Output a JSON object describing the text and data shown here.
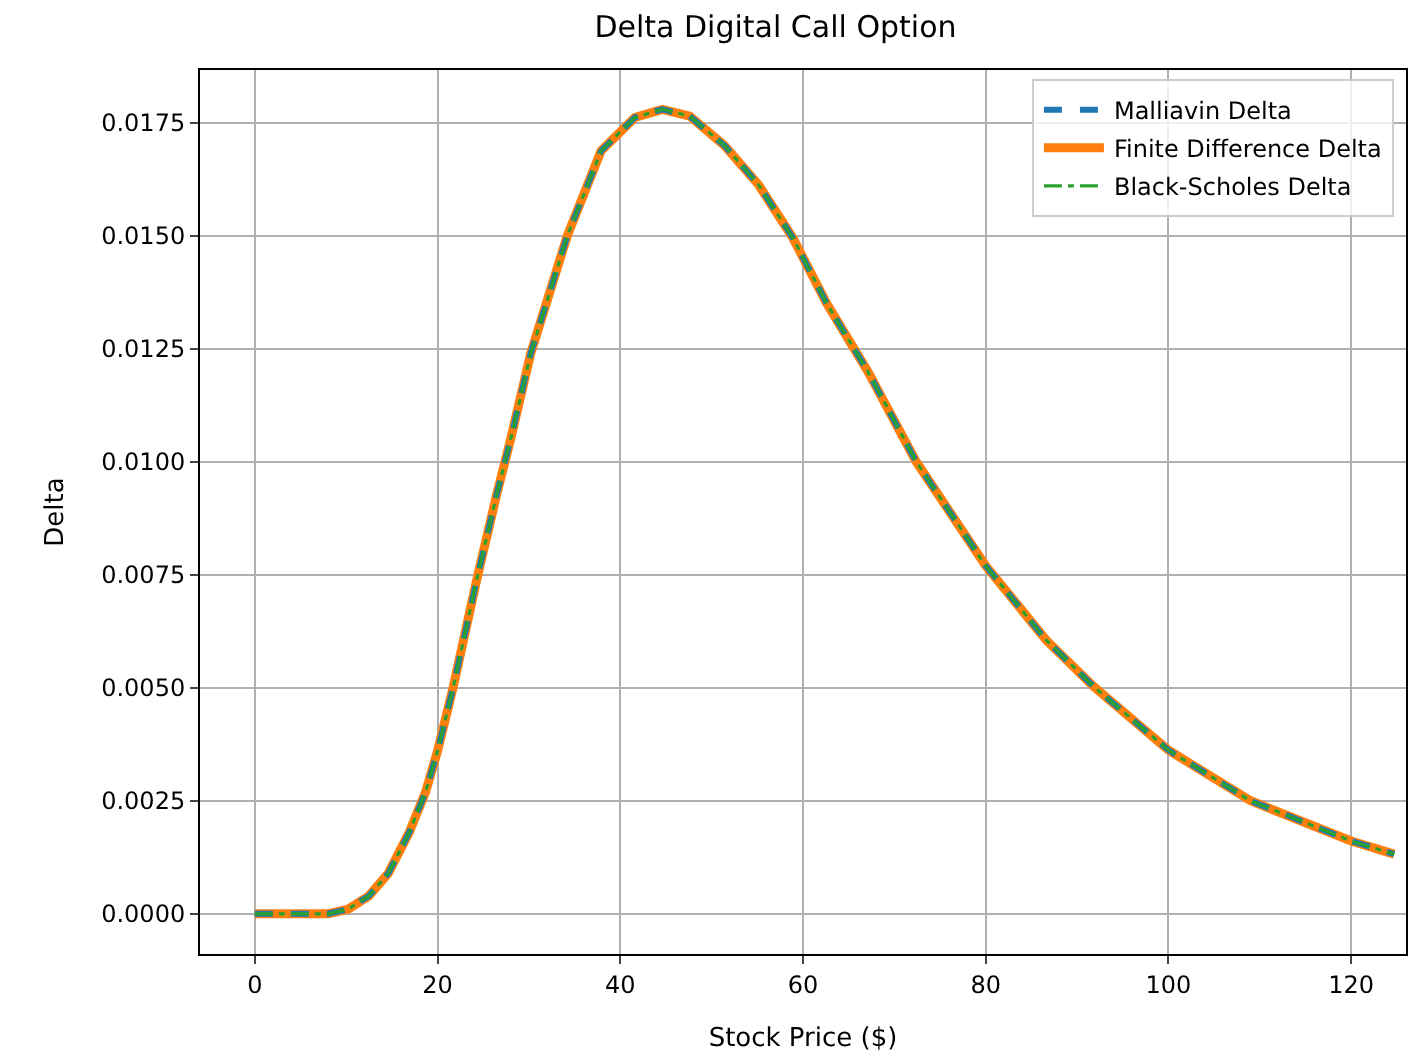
{
  "chart_data": {
    "type": "line",
    "title": "Delta Digital Call Option",
    "xlabel": "Stock Price ($)",
    "ylabel": "Delta",
    "x": [
      0,
      5,
      8,
      10.2,
      12.5,
      14.6,
      16.9,
      18.7,
      20,
      21.7,
      24.3,
      26.5,
      28,
      30.2,
      34.2,
      37.9,
      41.6,
      44.6,
      47.6,
      51.4,
      55.1,
      58.9,
      62.6,
      67.1,
      72.4,
      80,
      86.6,
      91.8,
      100,
      109,
      120,
      124.7
    ],
    "series": [
      {
        "name": "Malliavin Delta",
        "color": "#1f77b4",
        "line_style": "dashed",
        "values": [
          0,
          0,
          0,
          0.0001,
          0.0004,
          0.00089,
          0.0018,
          0.0027,
          0.0036,
          0.005,
          0.0074,
          0.0093,
          0.0105,
          0.0124,
          0.015,
          0.01688,
          0.01762,
          0.0178,
          0.01765,
          0.017,
          0.01614,
          0.01495,
          0.0135,
          0.012,
          0.01,
          0.0077,
          0.00606,
          0.00503,
          0.00362,
          0.0025,
          0.00161,
          0.00132
        ]
      },
      {
        "name": "Finite Difference Delta",
        "color": "#ff7f0e",
        "line_style": "solid",
        "values": [
          0,
          0,
          0,
          0.0001,
          0.0004,
          0.00089,
          0.0018,
          0.0027,
          0.0036,
          0.005,
          0.0074,
          0.0093,
          0.0105,
          0.0124,
          0.015,
          0.01688,
          0.01762,
          0.0178,
          0.01765,
          0.017,
          0.01614,
          0.01495,
          0.0135,
          0.012,
          0.01,
          0.0077,
          0.00606,
          0.00503,
          0.00362,
          0.0025,
          0.00161,
          0.00132
        ]
      },
      {
        "name": "Black-Scholes Delta",
        "color": "#2ca02c",
        "line_style": "dashdot",
        "values": [
          0,
          0,
          0,
          0.0001,
          0.0004,
          0.00089,
          0.0018,
          0.0027,
          0.0036,
          0.005,
          0.0074,
          0.0093,
          0.0105,
          0.0124,
          0.015,
          0.01688,
          0.01762,
          0.0178,
          0.01765,
          0.017,
          0.01614,
          0.01495,
          0.0135,
          0.012,
          0.01,
          0.0077,
          0.00606,
          0.00503,
          0.00362,
          0.0025,
          0.00161,
          0.00132
        ]
      }
    ],
    "xlim": [
      -6,
      126
    ],
    "xticks": [
      0,
      20,
      40,
      60,
      80,
      100,
      120
    ],
    "ylim": [
      -0.00089,
      0.01867
    ],
    "yticks": [
      {
        "value": 0,
        "label": "0.0000"
      },
      {
        "value": 0.0025,
        "label": "0.0025"
      },
      {
        "value": 0.005,
        "label": "0.0050"
      },
      {
        "value": 0.0075,
        "label": "0.0075"
      },
      {
        "value": 0.01,
        "label": "0.0100"
      },
      {
        "value": 0.0125,
        "label": "0.0125"
      },
      {
        "value": 0.015,
        "label": "0.0150"
      },
      {
        "value": 0.0175,
        "label": "0.0175"
      }
    ],
    "grid": true,
    "legend": "top right",
    "marker": "none"
  }
}
